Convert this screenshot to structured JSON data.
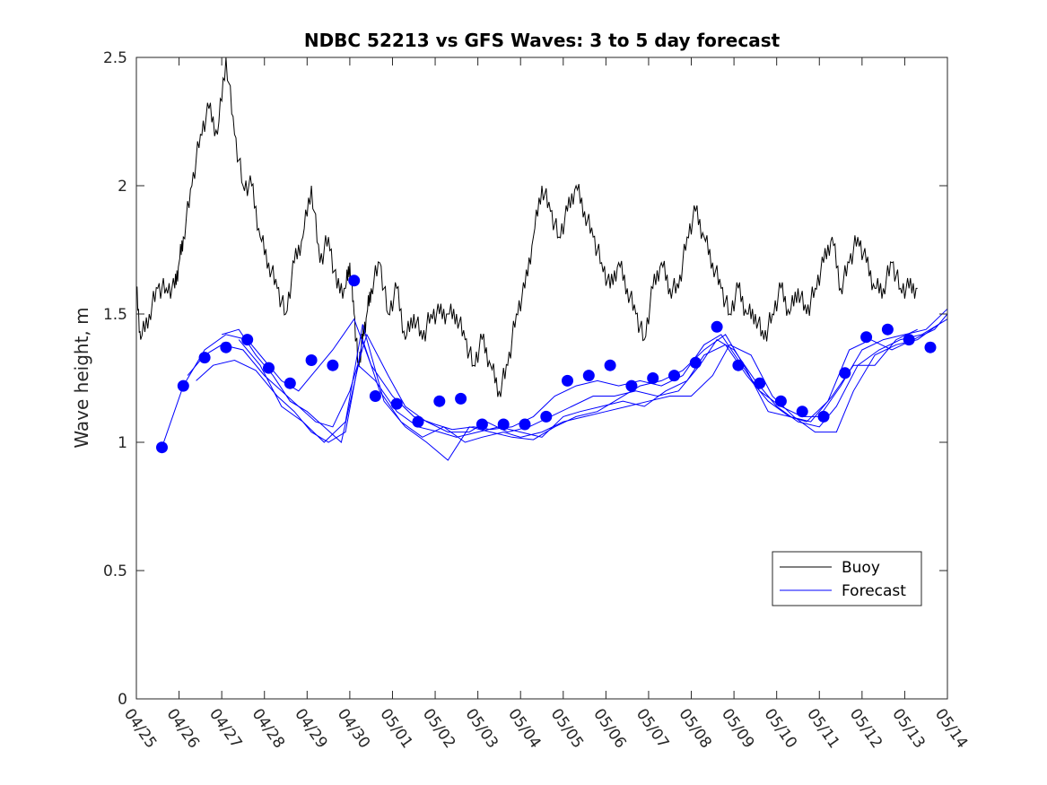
{
  "chart_data": {
    "type": "line",
    "title": "NDBC 52213 vs GFS Waves: 3 to 5 day forecast",
    "xlabel": "",
    "ylabel": "Wave height, m",
    "ylim": [
      0,
      2.5
    ],
    "yticks": [
      0,
      0.5,
      1,
      1.5,
      2,
      2.5
    ],
    "ytick_labels": [
      "0",
      "0.5",
      "1",
      "1.5",
      "2",
      "2.5"
    ],
    "xlim": [
      0,
      19
    ],
    "xtick_labels": [
      "04/25",
      "04/26",
      "04/27",
      "04/28",
      "04/29",
      "04/30",
      "05/01",
      "05/02",
      "05/03",
      "05/04",
      "05/05",
      "05/06",
      "05/07",
      "05/08",
      "05/09",
      "05/10",
      "05/11",
      "05/12",
      "05/13",
      "05/14"
    ],
    "grid": false,
    "legend": {
      "placement": "lower-right",
      "entries": [
        "Buoy",
        "Forecast"
      ]
    },
    "colors": {
      "buoy": "#000000",
      "forecast": "#0000ff",
      "axis": "#262626"
    },
    "buoy": {
      "name": "Buoy",
      "x": [
        0,
        0.1,
        0.3,
        0.5,
        0.7,
        0.9,
        1.0,
        1.1,
        1.3,
        1.5,
        1.7,
        1.9,
        2.1,
        2.3,
        2.5,
        2.7,
        2.9,
        3.1,
        3.3,
        3.5,
        3.7,
        3.9,
        4.1,
        4.3,
        4.5,
        4.7,
        4.9,
        5.0,
        5.1,
        5.2,
        5.3,
        5.4,
        5.5,
        5.7,
        5.9,
        6.1,
        6.3,
        6.5,
        6.7,
        6.9,
        7.1,
        7.3,
        7.5,
        7.7,
        7.9,
        8.1,
        8.3,
        8.5,
        8.7,
        8.9,
        9.1,
        9.3,
        9.5,
        9.7,
        9.9,
        10.1,
        10.3,
        10.5,
        10.7,
        10.9,
        11.1,
        11.3,
        11.5,
        11.7,
        11.9,
        12.1,
        12.3,
        12.5,
        12.7,
        12.9,
        13.1,
        13.3,
        13.5,
        13.7,
        13.9,
        14.1,
        14.3,
        14.5,
        14.7,
        14.9,
        15.1,
        15.3,
        15.5,
        15.7,
        15.9,
        16.1,
        16.3,
        16.5,
        16.7,
        16.9,
        17.1,
        17.3,
        17.5,
        17.7,
        17.9,
        18.1,
        18.3
      ],
      "y": [
        1.6,
        1.4,
        1.5,
        1.6,
        1.6,
        1.6,
        1.7,
        1.8,
        2.0,
        2.2,
        2.3,
        2.2,
        2.5,
        2.2,
        2.0,
        2.0,
        1.8,
        1.7,
        1.6,
        1.5,
        1.7,
        1.8,
        2.0,
        1.7,
        1.8,
        1.6,
        1.6,
        1.7,
        1.5,
        1.3,
        1.4,
        1.5,
        1.6,
        1.7,
        1.5,
        1.6,
        1.4,
        1.5,
        1.4,
        1.5,
        1.5,
        1.5,
        1.5,
        1.4,
        1.3,
        1.4,
        1.3,
        1.2,
        1.3,
        1.5,
        1.6,
        1.8,
        2.0,
        1.9,
        1.8,
        1.9,
        2.0,
        1.9,
        1.8,
        1.7,
        1.6,
        1.7,
        1.6,
        1.5,
        1.4,
        1.6,
        1.7,
        1.6,
        1.6,
        1.8,
        1.9,
        1.8,
        1.7,
        1.6,
        1.5,
        1.6,
        1.5,
        1.5,
        1.4,
        1.5,
        1.6,
        1.5,
        1.6,
        1.5,
        1.6,
        1.7,
        1.8,
        1.6,
        1.7,
        1.8,
        1.7,
        1.6,
        1.6,
        1.7,
        1.6,
        1.6,
        1.6
      ]
    },
    "forecast_points": {
      "name": "Forecast",
      "x": [
        0.6,
        1.1,
        1.6,
        2.1,
        2.6,
        3.1,
        3.6,
        4.1,
        4.6,
        5.1,
        5.6,
        6.1,
        6.6,
        7.1,
        7.6,
        8.1,
        8.6,
        9.1,
        9.6,
        10.1,
        10.6,
        11.1,
        11.6,
        12.1,
        12.6,
        13.1,
        13.6,
        14.1,
        14.6,
        15.1,
        15.6,
        16.1,
        16.6,
        17.1,
        17.6,
        18.1,
        18.6
      ],
      "y": [
        0.98,
        1.22,
        1.33,
        1.37,
        1.4,
        1.29,
        1.23,
        1.32,
        1.3,
        1.63,
        1.18,
        1.15,
        1.08,
        1.16,
        1.17,
        1.07,
        1.07,
        1.07,
        1.1,
        1.24,
        1.26,
        1.3,
        1.22,
        1.25,
        1.26,
        1.31,
        1.45,
        1.3,
        1.23,
        1.16,
        1.12,
        1.1,
        1.27,
        1.41,
        1.44,
        1.4,
        1.37
      ]
    },
    "forecast_lines": [
      {
        "x": [
          0.6,
          1.1,
          1.6,
          2.1,
          2.6,
          3.0,
          3.4,
          3.8,
          4.2,
          4.6,
          5.1,
          5.5,
          6.0,
          6.5,
          7.0,
          7.4,
          7.9,
          8.3,
          8.8,
          9.3,
          9.8,
          10.3,
          10.8,
          11.3,
          11.8,
          12.3,
          12.8,
          13.3,
          13.7,
          14.1,
          14.6,
          15.1,
          15.6,
          16.0,
          16.5,
          17.0,
          17.5,
          18.0,
          18.5,
          19.0
        ],
        "y": [
          0.98,
          1.22,
          1.36,
          1.42,
          1.4,
          1.32,
          1.24,
          1.2,
          1.28,
          1.36,
          1.48,
          1.3,
          1.18,
          1.1,
          1.07,
          1.05,
          1.06,
          1.05,
          1.06,
          1.1,
          1.18,
          1.22,
          1.24,
          1.22,
          1.24,
          1.22,
          1.26,
          1.38,
          1.42,
          1.32,
          1.2,
          1.14,
          1.1,
          1.1,
          1.22,
          1.36,
          1.4,
          1.42,
          1.44,
          1.52
        ]
      },
      {
        "x": [
          1.2,
          1.6,
          2.0,
          2.5,
          3.0,
          3.4,
          3.8,
          4.2,
          4.6,
          5.0,
          5.4,
          5.9,
          6.3,
          6.8,
          7.3,
          7.8,
          8.2,
          8.7,
          9.2,
          9.7,
          10.2,
          10.7,
          11.2,
          11.7,
          12.2,
          12.7,
          13.2,
          13.6,
          14.0,
          14.5,
          15.0,
          15.5,
          16.0,
          16.4,
          16.9,
          17.4,
          17.9,
          18.4,
          19.0
        ],
        "y": [
          1.26,
          1.34,
          1.38,
          1.36,
          1.26,
          1.2,
          1.14,
          1.08,
          1.06,
          1.2,
          1.42,
          1.26,
          1.14,
          1.08,
          1.04,
          1.04,
          1.08,
          1.04,
          1.06,
          1.1,
          1.14,
          1.18,
          1.18,
          1.2,
          1.18,
          1.2,
          1.3,
          1.4,
          1.36,
          1.24,
          1.14,
          1.08,
          1.06,
          1.14,
          1.3,
          1.36,
          1.4,
          1.42,
          1.48
        ]
      },
      {
        "x": [
          1.4,
          1.8,
          2.3,
          2.8,
          3.3,
          3.7,
          4.1,
          4.5,
          4.9,
          5.3,
          5.7,
          6.2,
          6.7,
          7.2,
          7.7,
          8.1,
          8.6,
          9.0,
          9.5,
          10.0,
          10.5,
          11.0,
          11.5,
          12.0,
          12.5,
          13.0,
          13.5,
          13.9,
          14.4,
          14.9,
          15.4,
          15.9,
          16.4,
          16.8,
          17.3,
          17.8,
          18.3,
          18.8
        ],
        "y": [
          1.24,
          1.3,
          1.32,
          1.28,
          1.18,
          1.12,
          1.04,
          1.0,
          1.04,
          1.4,
          1.2,
          1.08,
          1.02,
          1.06,
          1.0,
          1.02,
          1.04,
          1.02,
          1.04,
          1.08,
          1.1,
          1.12,
          1.14,
          1.16,
          1.18,
          1.18,
          1.26,
          1.38,
          1.34,
          1.18,
          1.1,
          1.04,
          1.04,
          1.2,
          1.34,
          1.38,
          1.4,
          1.46
        ]
      },
      {
        "x": [
          2.0,
          2.4,
          2.8,
          3.2,
          3.6,
          4.0,
          4.4,
          4.8,
          5.2,
          5.6,
          6.1,
          6.6,
          7.1,
          7.5,
          8.0,
          8.5,
          9.0,
          9.5,
          10.0,
          10.4,
          10.9,
          11.4,
          11.9,
          12.4,
          12.9,
          13.3,
          13.8,
          14.3,
          14.8,
          15.3,
          15.7,
          16.2,
          16.7,
          17.2,
          17.7,
          18.2,
          18.7,
          19.0
        ],
        "y": [
          1.42,
          1.44,
          1.34,
          1.26,
          1.16,
          1.12,
          1.06,
          1.0,
          1.3,
          1.24,
          1.12,
          1.06,
          1.04,
          1.02,
          1.04,
          1.06,
          1.04,
          1.02,
          1.1,
          1.12,
          1.14,
          1.16,
          1.14,
          1.2,
          1.24,
          1.34,
          1.38,
          1.26,
          1.16,
          1.1,
          1.08,
          1.16,
          1.36,
          1.4,
          1.36,
          1.4,
          1.44,
          1.5
        ]
      },
      {
        "x": [
          2.4,
          2.9,
          3.4,
          3.9,
          4.4,
          4.9,
          5.3,
          5.8,
          6.3,
          6.8,
          7.3,
          7.8,
          8.3,
          8.8,
          9.3,
          9.8,
          10.3,
          10.8,
          11.3,
          11.8,
          12.3,
          12.8,
          13.3,
          13.8,
          14.3,
          14.8,
          15.3,
          15.8,
          16.3,
          16.8,
          17.3,
          17.8,
          18.3
        ],
        "y": [
          1.4,
          1.3,
          1.14,
          1.08,
          1.0,
          1.08,
          1.46,
          1.16,
          1.06,
          1.0,
          0.93,
          1.06,
          1.04,
          1.02,
          1.01,
          1.06,
          1.1,
          1.12,
          1.17,
          1.22,
          1.24,
          1.28,
          1.36,
          1.42,
          1.28,
          1.12,
          1.1,
          1.08,
          1.18,
          1.3,
          1.3,
          1.4,
          1.44
        ]
      }
    ]
  }
}
